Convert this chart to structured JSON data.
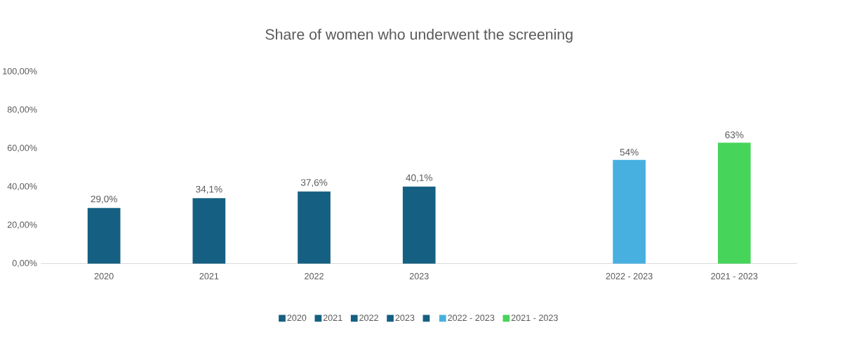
{
  "chart_data": {
    "type": "bar",
    "title": "Share of women who underwent the screening",
    "categories": [
      "2020",
      "2021",
      "2022",
      "2023",
      null,
      "2022 - 2023",
      "2021 - 2023"
    ],
    "series": [
      {
        "name": "2020",
        "color": "#156082",
        "values": [
          29.0,
          null,
          null,
          null,
          null,
          null,
          null
        ],
        "value_labels": [
          "29,0%",
          null,
          null,
          null,
          null,
          null,
          null
        ]
      },
      {
        "name": "2021",
        "color": "#156082",
        "values": [
          null,
          34.1,
          null,
          null,
          null,
          null,
          null
        ],
        "value_labels": [
          null,
          "34,1%",
          null,
          null,
          null,
          null,
          null
        ]
      },
      {
        "name": "2022",
        "color": "#156082",
        "values": [
          null,
          null,
          37.6,
          null,
          null,
          null,
          null
        ],
        "value_labels": [
          null,
          null,
          "37,6%",
          null,
          null,
          null,
          null
        ]
      },
      {
        "name": "2023",
        "color": "#156082",
        "values": [
          null,
          null,
          null,
          40.1,
          null,
          null,
          null
        ],
        "value_labels": [
          null,
          null,
          null,
          "40,1%",
          null,
          null,
          null
        ]
      },
      {
        "color": "#156082",
        "values": [
          null,
          null,
          null,
          null,
          null,
          null,
          null
        ]
      },
      {
        "name": "2022 - 2023",
        "color": "#47b0e0",
        "values": [
          null,
          null,
          null,
          null,
          null,
          54,
          null
        ],
        "value_labels": [
          null,
          null,
          null,
          null,
          null,
          "54%",
          null
        ]
      },
      {
        "name": "2021 - 2023",
        "color": "#47d45a",
        "values": [
          null,
          null,
          null,
          null,
          null,
          null,
          63
        ],
        "value_labels": [
          null,
          null,
          null,
          null,
          null,
          null,
          "63%"
        ]
      }
    ],
    "ylim": [
      0,
      100
    ],
    "yticks": [
      {
        "value": 0,
        "label": "0,00%"
      },
      {
        "value": 20,
        "label": "20,00%"
      },
      {
        "value": 40,
        "label": "40,00%"
      },
      {
        "value": 60,
        "label": "60,00%"
      },
      {
        "value": 80,
        "label": "80,00%"
      },
      {
        "value": 100,
        "label": "100,00%"
      }
    ],
    "legend": "bottom"
  }
}
